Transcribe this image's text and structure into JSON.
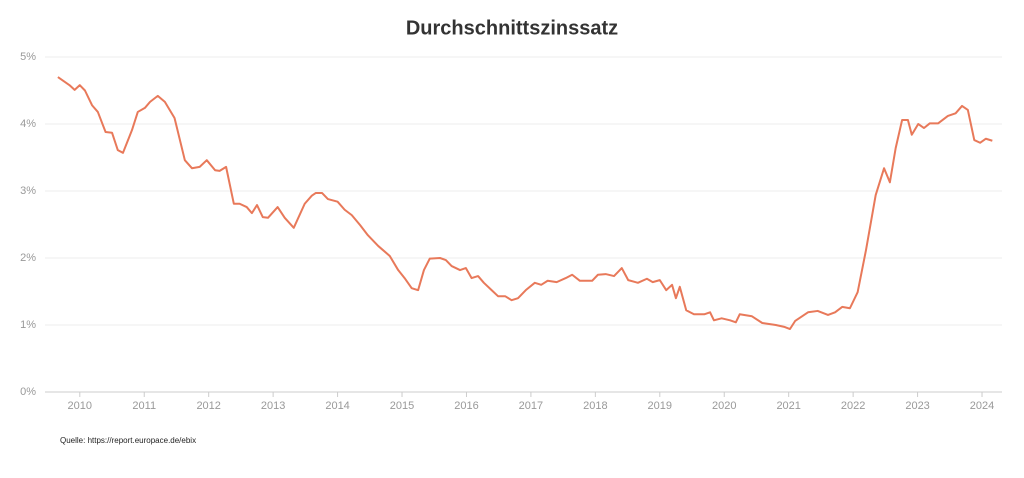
{
  "chart_data": {
    "type": "line",
    "title": "Durchschnittszinssatz",
    "source": "Quelle: https://report.europace.de/ebix",
    "x": [
      2009.66,
      2009.84,
      2009.92,
      2010.0,
      2010.08,
      2010.19,
      2010.28,
      2010.4,
      2010.5,
      2010.59,
      2010.67,
      2010.81,
      2010.9,
      2011.01,
      2011.09,
      2011.21,
      2011.32,
      2011.47,
      2011.63,
      2011.74,
      2011.86,
      2011.97,
      2012.1,
      2012.17,
      2012.27,
      2012.39,
      2012.48,
      2012.59,
      2012.67,
      2012.75,
      2012.84,
      2012.92,
      2013.07,
      2013.18,
      2013.32,
      2013.49,
      2013.6,
      2013.66,
      2013.76,
      2013.85,
      2014.0,
      2014.11,
      2014.22,
      2014.35,
      2014.47,
      2014.63,
      2014.81,
      2014.94,
      2015.04,
      2015.15,
      2015.25,
      2015.34,
      2015.43,
      2015.59,
      2015.68,
      2015.77,
      2015.9,
      2015.99,
      2016.08,
      2016.18,
      2016.27,
      2016.39,
      2016.49,
      2016.6,
      2016.7,
      2016.8,
      2016.92,
      2017.06,
      2017.16,
      2017.26,
      2017.4,
      2017.54,
      2017.64,
      2017.76,
      2017.95,
      2018.04,
      2018.16,
      2018.29,
      2018.41,
      2018.51,
      2018.66,
      2018.8,
      2018.89,
      2019.0,
      2019.1,
      2019.19,
      2019.25,
      2019.31,
      2019.41,
      2019.53,
      2019.69,
      2019.78,
      2019.84,
      2019.96,
      2020.09,
      2020.18,
      2020.24,
      2020.43,
      2020.59,
      2020.8,
      2020.94,
      2021.02,
      2021.1,
      2021.3,
      2021.45,
      2021.61,
      2021.72,
      2021.83,
      2021.95,
      2022.07,
      2022.2,
      2022.35,
      2022.48,
      2022.57,
      2022.66,
      2022.76,
      2022.85,
      2022.91,
      2023.01,
      2023.1,
      2023.19,
      2023.32,
      2023.47,
      2023.59,
      2023.69,
      2023.78,
      2023.88,
      2023.97,
      2024.06,
      2024.16
    ],
    "series": [
      {
        "color": "#e8795a",
        "values": [
          4.7,
          4.58,
          4.51,
          4.58,
          4.5,
          4.28,
          4.18,
          3.88,
          3.87,
          3.61,
          3.57,
          3.91,
          4.18,
          4.24,
          4.33,
          4.42,
          4.33,
          4.09,
          3.46,
          3.34,
          3.36,
          3.46,
          3.31,
          3.3,
          3.36,
          2.81,
          2.81,
          2.76,
          2.67,
          2.79,
          2.61,
          2.6,
          2.76,
          2.6,
          2.45,
          2.81,
          2.93,
          2.97,
          2.97,
          2.88,
          2.84,
          2.72,
          2.64,
          2.49,
          2.34,
          2.18,
          2.03,
          1.82,
          1.7,
          1.55,
          1.52,
          1.82,
          1.99,
          2.0,
          1.97,
          1.88,
          1.82,
          1.85,
          1.7,
          1.73,
          1.63,
          1.52,
          1.43,
          1.43,
          1.37,
          1.4,
          1.52,
          1.63,
          1.6,
          1.66,
          1.64,
          1.7,
          1.75,
          1.66,
          1.66,
          1.75,
          1.76,
          1.73,
          1.85,
          1.67,
          1.63,
          1.69,
          1.64,
          1.67,
          1.52,
          1.6,
          1.4,
          1.57,
          1.22,
          1.16,
          1.16,
          1.19,
          1.07,
          1.1,
          1.07,
          1.04,
          1.16,
          1.13,
          1.03,
          1.0,
          0.97,
          0.94,
          1.06,
          1.19,
          1.21,
          1.15,
          1.19,
          1.27,
          1.25,
          1.49,
          2.12,
          2.94,
          3.34,
          3.13,
          3.64,
          4.06,
          4.06,
          3.84,
          4.0,
          3.94,
          4.01,
          4.01,
          4.12,
          4.16,
          4.27,
          4.21,
          3.76,
          3.72,
          3.78,
          3.75
        ]
      }
    ],
    "xlim": [
      2009.46,
      2024.31
    ],
    "xticks": [
      2010,
      2011,
      2012,
      2013,
      2014,
      2015,
      2016,
      2017,
      2018,
      2019,
      2020,
      2021,
      2022,
      2023,
      2024
    ],
    "ylim": [
      0,
      5
    ],
    "yticks": [
      {
        "value": 0,
        "label": "0%"
      },
      {
        "value": 1,
        "label": "1%"
      },
      {
        "value": 2,
        "label": "2%"
      },
      {
        "value": 3,
        "label": "3%"
      },
      {
        "value": 4,
        "label": "4%"
      },
      {
        "value": 5,
        "label": "5%"
      }
    ],
    "grid": true
  }
}
